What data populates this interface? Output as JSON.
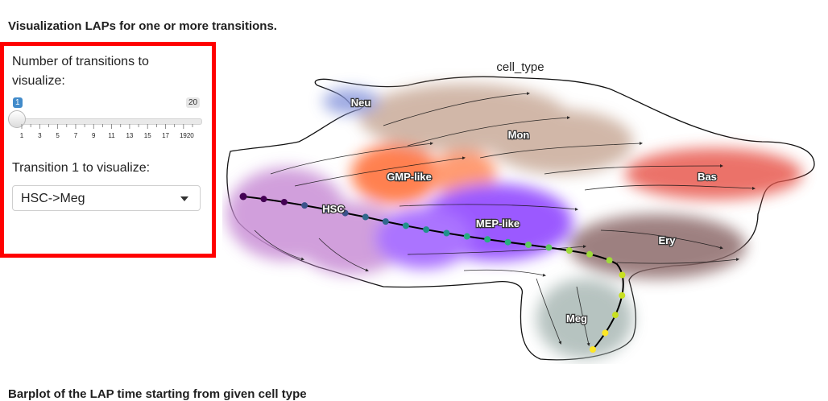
{
  "section_title": "Visualization LAPs for one or more transitions.",
  "bottom_section_title": "Barplot of the LAP time starting from given cell type",
  "slider": {
    "label": "Number of transitions to visualize:",
    "min": "1",
    "max": "20",
    "value": 1,
    "tick_labels": [
      "1",
      "3",
      "5",
      "7",
      "9",
      "11",
      "13",
      "15",
      "17",
      "1920"
    ]
  },
  "select": {
    "label": "Transition 1 to visualize:",
    "value": "HSC->Meg"
  },
  "plot": {
    "title": "cell_type",
    "cell_types": [
      "Neu",
      "Mon",
      "GMP-like",
      "Bas",
      "HSC",
      "MEP-like",
      "Ery",
      "Meg"
    ]
  },
  "colors": {
    "highlight_border": "#ff0000",
    "slider_badge": "#428bca",
    "hsc": "#c98fd6",
    "gmp": "#ff6a33",
    "mep": "#8a3dff",
    "mon": "#c9ab9a",
    "neu": "#8a99dd",
    "bas": "#e85a4f",
    "ery": "#8d6b6b",
    "meg": "#aab9b6"
  }
}
